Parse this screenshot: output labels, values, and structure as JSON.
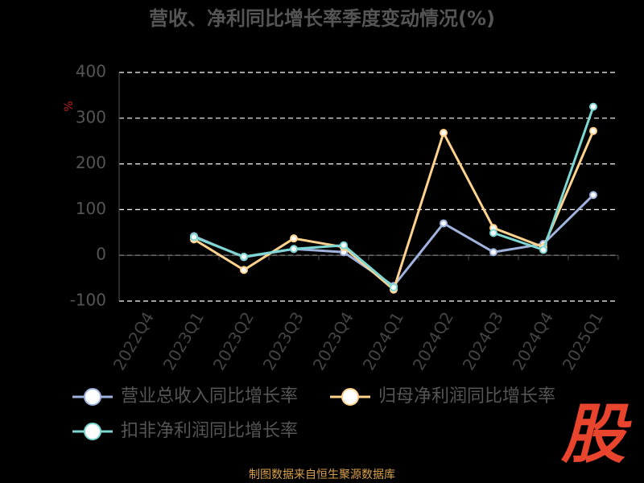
{
  "chart_data": {
    "type": "line",
    "title": "营收、净利同比增长率季度变动情况(%)",
    "y_label": "%",
    "categories": [
      "2022Q4",
      "2023Q1",
      "2023Q2",
      "2023Q3",
      "2023Q4",
      "2024Q1",
      "2024Q2",
      "2024Q3",
      "2024Q4",
      "2025Q1"
    ],
    "series": [
      {
        "name": "营业总收入同比增长率",
        "color": "#9fb3dc",
        "values": [
          null,
          42,
          -4,
          14,
          7,
          -67,
          70,
          7,
          25,
          132
        ]
      },
      {
        "name": "归母净利润同比增长率",
        "color": "#ffd28e",
        "values": [
          null,
          35,
          -32,
          37,
          18,
          -75,
          268,
          60,
          18,
          272
        ]
      },
      {
        "name": "扣非净利润同比增长率",
        "color": "#7ed6d2",
        "values": [
          null,
          40,
          -3,
          14,
          22,
          -70,
          null,
          49,
          12,
          325
        ]
      }
    ],
    "ylim": [
      -100,
      400
    ],
    "yticks": [
      -100,
      0,
      100,
      200,
      300,
      400
    ],
    "grid": true,
    "legend": "bottom",
    "source": "制图数据来自恒生聚源数据库",
    "logo": "股"
  }
}
